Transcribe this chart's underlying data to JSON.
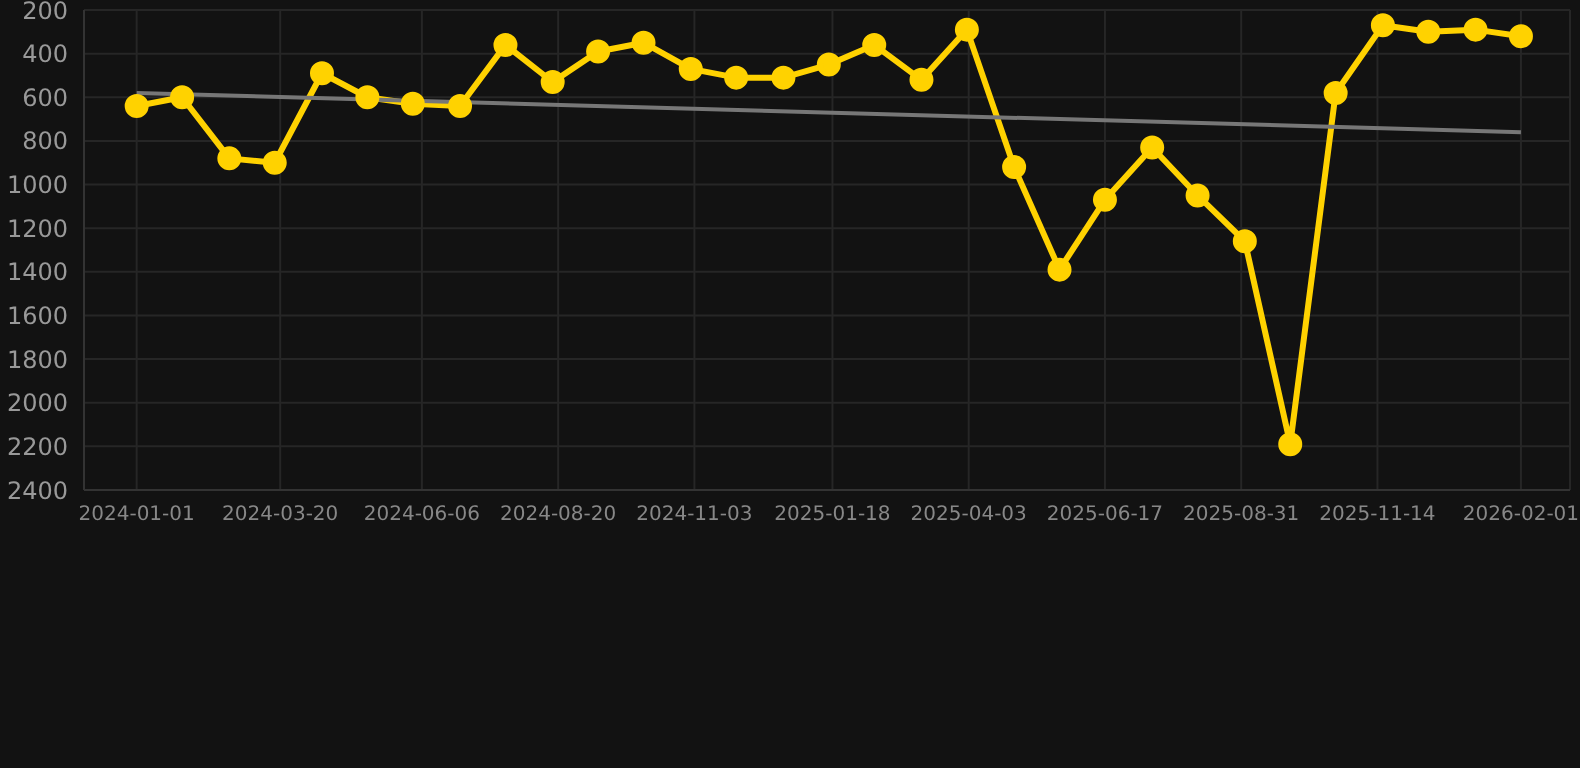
{
  "chart_data": {
    "type": "line",
    "x": [
      "2024-01-01",
      "2024-01-26",
      "2024-02-21",
      "2024-03-17",
      "2024-04-12",
      "2024-05-07",
      "2024-06-01",
      "2024-06-27",
      "2024-07-22",
      "2024-08-17",
      "2024-09-11",
      "2024-10-06",
      "2024-11-01",
      "2024-11-26",
      "2024-12-22",
      "2025-01-16",
      "2025-02-10",
      "2025-03-08",
      "2025-04-02",
      "2025-04-28",
      "2025-05-23",
      "2025-06-17",
      "2025-07-13",
      "2025-08-07",
      "2025-09-02",
      "2025-09-27",
      "2025-10-22",
      "2025-11-17",
      "2025-12-12",
      "2026-01-07",
      "2026-02-01"
    ],
    "series": [
      {
        "color": "#ffd200",
        "marker": "circle",
        "values": [
          640,
          600,
          880,
          900,
          490,
          600,
          630,
          640,
          360,
          530,
          390,
          350,
          470,
          510,
          510,
          450,
          360,
          520,
          290,
          920,
          1390,
          1070,
          830,
          1050,
          1260,
          2190,
          580,
          270,
          300,
          290,
          320
        ]
      },
      {
        "type": "line",
        "color": "#777777",
        "marker": "none",
        "x": [
          "2024-01-01",
          "2026-02-01"
        ],
        "values": [
          580,
          760
        ]
      }
    ],
    "xlim": [
      "2023-12-03",
      "2026-02-28"
    ],
    "xticks": [
      "2024-01-01",
      "2024-03-20",
      "2024-06-06",
      "2024-08-20",
      "2024-11-03",
      "2025-01-18",
      "2025-04-03",
      "2025-06-17",
      "2025-08-31",
      "2025-11-14",
      "2026-02-01"
    ],
    "ylim": [
      2400,
      200
    ],
    "yticks": [
      200,
      400,
      600,
      800,
      1000,
      1200,
      1400,
      1600,
      1800,
      2000,
      2200,
      2400
    ],
    "grid": true
  }
}
